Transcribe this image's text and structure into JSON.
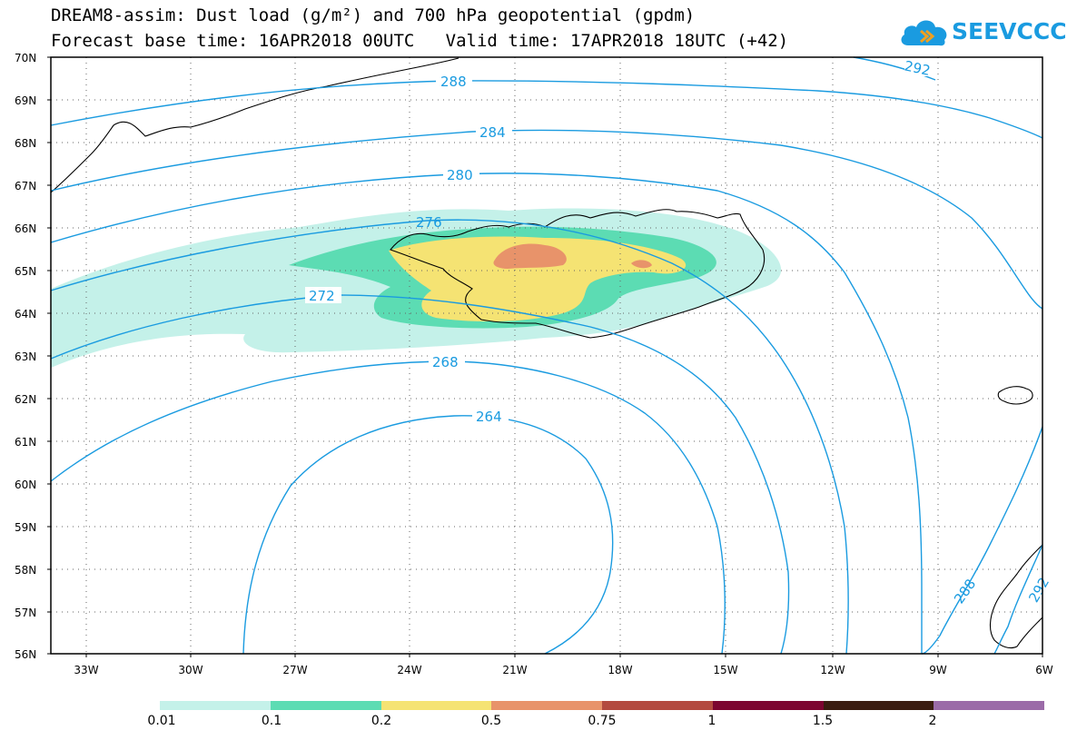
{
  "title": {
    "line1": "DREAM8-assim: Dust load (g/m²) and 700 hPa geopotential (gpdm)",
    "line2": "Forecast base time: 16APR2018 00UTC   Valid time: 17APR2018 18UTC (+42)"
  },
  "logo": {
    "text": "SEEVCCC",
    "icon": "cloud-icon",
    "color": "#1a9be0"
  },
  "axes": {
    "lat_labels": [
      "70N",
      "69N",
      "68N",
      "67N",
      "66N",
      "65N",
      "64N",
      "63N",
      "62N",
      "61N",
      "60N",
      "59N",
      "58N",
      "57N",
      "56N"
    ],
    "lon_labels": [
      "33W",
      "30W",
      "27W",
      "24W",
      "21W",
      "18W",
      "15W",
      "12W",
      "9W",
      "6W"
    ]
  },
  "contour_labels": [
    "288",
    "292",
    "284",
    "280",
    "276",
    "272",
    "268",
    "264",
    "288",
    "292"
  ],
  "legend": {
    "colors": [
      "#c4f1e9",
      "#5cdcb3",
      "#f5e373",
      "#e8936a",
      "#b34a3f",
      "#7c0530",
      "#3a1c10",
      "#9b6ba8"
    ],
    "labels": [
      "0.01",
      "0.1",
      "0.2",
      "0.5",
      "0.75",
      "1",
      "1.5",
      "2"
    ]
  },
  "colors": {
    "contour": "#1a9be0",
    "coast": "#000000"
  }
}
